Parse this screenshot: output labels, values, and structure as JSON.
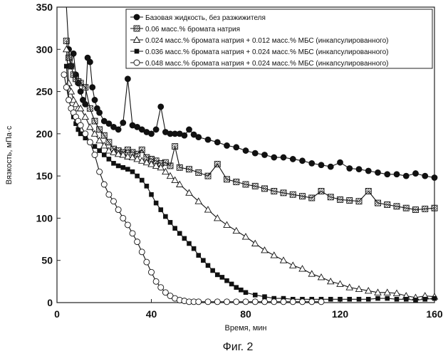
{
  "figure": {
    "caption": "Фиг. 2"
  },
  "chart_data": {
    "type": "line",
    "xlabel": "Время, мин",
    "ylabel": "Вязкость, мПа·с",
    "xlim": [
      0,
      160
    ],
    "ylim": [
      0,
      350
    ],
    "xticks": [
      "0",
      "40",
      "80",
      "120",
      "160"
    ],
    "yticks": [
      "0",
      "50",
      "100",
      "150",
      "200",
      "250",
      "300",
      "350"
    ],
    "legend_position": "top-right",
    "series": [
      {
        "name": "Базовая жидкость, без разжижителя",
        "marker": "filled-circle",
        "x": [
          4,
          5,
          6,
          7,
          8,
          9,
          10,
          11,
          12,
          13,
          14,
          15,
          16,
          17,
          18,
          20,
          22,
          24,
          26,
          28,
          30,
          32,
          34,
          36,
          38,
          40,
          42,
          44,
          46,
          48,
          50,
          52,
          54,
          56,
          58,
          60,
          64,
          68,
          72,
          76,
          80,
          84,
          88,
          92,
          96,
          100,
          104,
          108,
          112,
          116,
          120,
          124,
          128,
          132,
          136,
          140,
          144,
          148,
          152,
          156,
          160
        ],
        "y": [
          360,
          300,
          280,
          295,
          270,
          260,
          250,
          240,
          235,
          290,
          285,
          255,
          240,
          230,
          225,
          215,
          212,
          208,
          205,
          213,
          265,
          210,
          208,
          205,
          202,
          200,
          205,
          232,
          202,
          200,
          200,
          200,
          198,
          205,
          199,
          196,
          193,
          190,
          186,
          184,
          180,
          177,
          175,
          172,
          172,
          170,
          168,
          165,
          163,
          161,
          166,
          159,
          158,
          156,
          154,
          152,
          152,
          150,
          153,
          150,
          148
        ]
      },
      {
        "name": "0.06 масс.% бромата натрия",
        "marker": "hatched-square",
        "x": [
          4,
          5,
          6,
          7,
          8,
          9,
          10,
          12,
          14,
          16,
          18,
          20,
          22,
          24,
          26,
          28,
          30,
          32,
          34,
          36,
          38,
          40,
          42,
          44,
          46,
          48,
          50,
          52,
          56,
          60,
          64,
          68,
          72,
          76,
          80,
          84,
          88,
          92,
          96,
          100,
          104,
          108,
          112,
          116,
          120,
          124,
          128,
          132,
          136,
          140,
          144,
          148,
          152,
          156,
          160
        ],
        "y": [
          310,
          290,
          280,
          270,
          265,
          262,
          260,
          255,
          230,
          215,
          205,
          198,
          190,
          182,
          180,
          178,
          181,
          178,
          176,
          181,
          172,
          170,
          168,
          165,
          166,
          162,
          185,
          160,
          158,
          154,
          150,
          164,
          146,
          143,
          140,
          138,
          135,
          132,
          130,
          128,
          126,
          124,
          132,
          125,
          122,
          121,
          120,
          132,
          118,
          116,
          114,
          112,
          110,
          111,
          112
        ]
      },
      {
        "name": "0.024 масс.% бромата натрия + 0.012 масс.% МБС (инкапсулированного)",
        "marker": "open-triangle",
        "x": [
          4,
          5,
          6,
          7,
          8,
          9,
          10,
          12,
          14,
          16,
          18,
          20,
          22,
          24,
          26,
          28,
          30,
          32,
          34,
          36,
          38,
          40,
          42,
          44,
          46,
          48,
          50,
          52,
          56,
          60,
          64,
          68,
          72,
          76,
          80,
          84,
          88,
          92,
          96,
          100,
          104,
          108,
          112,
          116,
          120,
          124,
          128,
          132,
          136,
          140,
          144,
          148,
          152,
          156,
          160
        ],
        "y": [
          300,
          260,
          250,
          240,
          235,
          230,
          230,
          220,
          208,
          200,
          192,
          186,
          180,
          178,
          176,
          175,
          173,
          172,
          170,
          168,
          166,
          164,
          162,
          160,
          155,
          150,
          145,
          140,
          130,
          120,
          110,
          100,
          92,
          85,
          78,
          70,
          62,
          56,
          50,
          44,
          40,
          34,
          30,
          25,
          22,
          18,
          16,
          14,
          12,
          12,
          11,
          8,
          6,
          8,
          7
        ]
      },
      {
        "name": "0.036 масс.% бромата натрия + 0.024 масс.% МБС (инкапсулированного)",
        "marker": "filled-square",
        "x": [
          4,
          5,
          6,
          7,
          8,
          9,
          10,
          12,
          14,
          16,
          18,
          20,
          22,
          24,
          26,
          28,
          30,
          32,
          34,
          36,
          38,
          40,
          42,
          44,
          46,
          48,
          50,
          52,
          54,
          56,
          58,
          60,
          62,
          64,
          66,
          68,
          70,
          72,
          74,
          76,
          78,
          80,
          84,
          88,
          92,
          96,
          100,
          104,
          108,
          112,
          116,
          120,
          124,
          128,
          132,
          136,
          140,
          144,
          148,
          152,
          156,
          160
        ],
        "y": [
          280,
          240,
          230,
          220,
          212,
          205,
          200,
          195,
          190,
          185,
          180,
          175,
          170,
          165,
          162,
          160,
          158,
          155,
          150,
          145,
          138,
          128,
          118,
          110,
          102,
          95,
          88,
          82,
          76,
          70,
          64,
          56,
          50,
          44,
          38,
          33,
          30,
          26,
          22,
          18,
          15,
          12,
          9,
          7,
          5,
          5,
          4,
          4,
          4,
          4,
          4,
          4,
          4,
          4,
          4,
          5,
          5,
          4,
          4,
          3,
          4,
          5
        ]
      },
      {
        "name": "0.048 масс.% бромата натрия + 0.024 масс.% МБС (инкапсулированного)",
        "marker": "open-circle",
        "x": [
          3,
          4,
          5,
          6,
          7,
          8,
          9,
          10,
          12,
          14,
          16,
          18,
          20,
          22,
          24,
          26,
          28,
          30,
          32,
          34,
          36,
          38,
          40,
          42,
          44,
          46,
          48,
          50,
          52,
          54,
          56,
          58,
          60,
          64,
          68,
          72,
          76,
          80,
          84,
          88,
          92,
          96,
          100,
          104,
          108,
          112
        ],
        "y": [
          270,
          255,
          240,
          230,
          225,
          220,
          215,
          210,
          200,
          190,
          175,
          155,
          140,
          128,
          120,
          110,
          100,
          92,
          82,
          72,
          60,
          48,
          36,
          25,
          18,
          12,
          8,
          5,
          3,
          2,
          1,
          1,
          1,
          1,
          1,
          1,
          1,
          1,
          1,
          1,
          1,
          1,
          1,
          1,
          1,
          1
        ]
      }
    ]
  }
}
